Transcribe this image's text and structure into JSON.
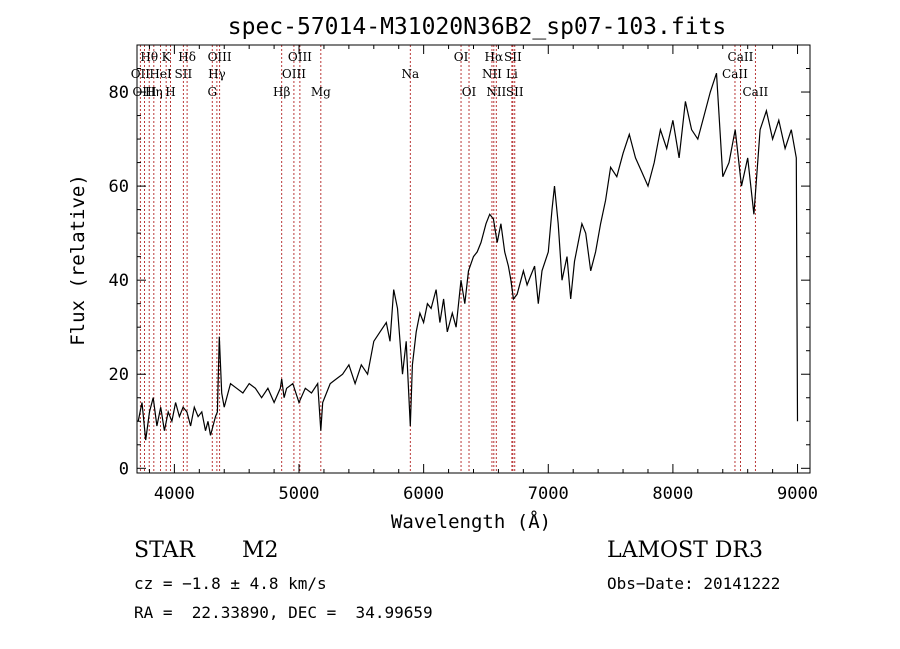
{
  "chart_data": {
    "type": "line",
    "title": "spec-57014-M31020N36B2_sp07-103.fits",
    "xlabel": "Wavelength (Å)",
    "ylabel": "Flux (relative)",
    "xlim": [
      3700,
      9100
    ],
    "ylim": [
      -1,
      90
    ],
    "xticks": [
      4000,
      5000,
      6000,
      7000,
      8000,
      9000
    ],
    "xtick_labels": [
      "4000",
      "5000",
      "6000",
      "7000",
      "8000",
      "9000"
    ],
    "yticks": [
      0,
      20,
      40,
      60,
      80
    ],
    "ytick_labels": [
      "0",
      "20",
      "40",
      "60",
      "80"
    ],
    "grid": false,
    "line_color": "#000000",
    "marker_color": "#b22222",
    "spectrum": {
      "x": [
        3710,
        3740,
        3770,
        3800,
        3830,
        3860,
        3890,
        3920,
        3950,
        3980,
        4010,
        4040,
        4070,
        4100,
        4130,
        4160,
        4190,
        4220,
        4250,
        4270,
        4290,
        4310,
        4330,
        4345,
        4360,
        4380,
        4400,
        4450,
        4500,
        4550,
        4600,
        4650,
        4700,
        4750,
        4800,
        4850,
        4861,
        4880,
        4900,
        4950,
        5000,
        5050,
        5100,
        5150,
        5175,
        5190,
        5250,
        5300,
        5350,
        5400,
        5450,
        5500,
        5550,
        5600,
        5650,
        5700,
        5730,
        5760,
        5790,
        5830,
        5860,
        5893,
        5910,
        5940,
        5970,
        6000,
        6030,
        6060,
        6100,
        6130,
        6160,
        6190,
        6230,
        6260,
        6300,
        6330,
        6360,
        6400,
        6430,
        6460,
        6500,
        6530,
        6560,
        6590,
        6620,
        6650,
        6680,
        6700,
        6720,
        6750,
        6780,
        6800,
        6830,
        6860,
        6890,
        6920,
        6950,
        7000,
        7030,
        7050,
        7080,
        7110,
        7150,
        7180,
        7210,
        7240,
        7270,
        7300,
        7340,
        7380,
        7420,
        7460,
        7500,
        7550,
        7600,
        7650,
        7700,
        7750,
        7800,
        7850,
        7900,
        7950,
        8000,
        8050,
        8100,
        8150,
        8200,
        8250,
        8300,
        8350,
        8400,
        8450,
        8500,
        8550,
        8600,
        8650,
        8700,
        8750,
        8800,
        8850,
        8900,
        8950,
        8990,
        9000
      ],
      "y": [
        10,
        14,
        6,
        12,
        15,
        9,
        13,
        8,
        12,
        10,
        14,
        11,
        13,
        12,
        9,
        13,
        11,
        12,
        8,
        10,
        7,
        9,
        11,
        12,
        28,
        16,
        13,
        18,
        17,
        16,
        18,
        17,
        15,
        17,
        14,
        17,
        19,
        15,
        17,
        18,
        14,
        17,
        16,
        18,
        8,
        14,
        18,
        19,
        20,
        22,
        18,
        22,
        20,
        27,
        29,
        31,
        27,
        38,
        34,
        20,
        27,
        9,
        22,
        29,
        33,
        31,
        35,
        34,
        38,
        31,
        36,
        29,
        33,
        30,
        40,
        35,
        42,
        45,
        46,
        48,
        52,
        54,
        53,
        48,
        52,
        46,
        43,
        40,
        36,
        37,
        40,
        42,
        39,
        41,
        43,
        35,
        42,
        46,
        55,
        60,
        52,
        40,
        45,
        36,
        44,
        48,
        52,
        50,
        42,
        46,
        52,
        57,
        64,
        62,
        67,
        71,
        66,
        63,
        60,
        65,
        72,
        68,
        74,
        66,
        78,
        72,
        70,
        75,
        80,
        84,
        62,
        65,
        72,
        60,
        66,
        54,
        72,
        76,
        70,
        74,
        68,
        72,
        66,
        10
      ],
      "note_axis": ""
    },
    "lines": [
      {
        "label": "Hθ",
        "x": 3798,
        "row": 0
      },
      {
        "label": "OII",
        "x": 3727,
        "row": 1
      },
      {
        "label": "OIII",
        "x": 3760,
        "row": 2
      },
      {
        "label": "K",
        "x": 3934,
        "row": 0
      },
      {
        "label": "HeI",
        "x": 3889,
        "row": 1
      },
      {
        "label": "Hη",
        "x": 3835,
        "row": 2
      },
      {
        "label": "SII",
        "x": 4072,
        "row": 1
      },
      {
        "label": "H",
        "x": 3969,
        "row": 2
      },
      {
        "label": "Hδ",
        "x": 4102,
        "row": 0
      },
      {
        "label": "OIII",
        "x": 4363,
        "row": 0
      },
      {
        "label": "Hγ",
        "x": 4341,
        "row": 1
      },
      {
        "label": "G",
        "x": 4304,
        "row": 2
      },
      {
        "label": "Hβ",
        "x": 4861,
        "row": 2
      },
      {
        "label": "OIII",
        "x": 5007,
        "row": 0
      },
      {
        "label": "OIII",
        "x": 4959,
        "row": 1
      },
      {
        "label": "Mg",
        "x": 5175,
        "row": 2
      },
      {
        "label": "Na",
        "x": 5893,
        "row": 1
      },
      {
        "label": "OI",
        "x": 6300,
        "row": 0
      },
      {
        "label": "OI",
        "x": 6364,
        "row": 2
      },
      {
        "label": "Hα",
        "x": 6563,
        "row": 0
      },
      {
        "label": "SII",
        "x": 6716,
        "row": 0
      },
      {
        "label": "NII",
        "x": 6548,
        "row": 1
      },
      {
        "label": "Li",
        "x": 6708,
        "row": 1
      },
      {
        "label": "NII",
        "x": 6583,
        "row": 2
      },
      {
        "label": "SII",
        "x": 6731,
        "row": 2
      },
      {
        "label": "CaII",
        "x": 8542,
        "row": 0
      },
      {
        "label": "CaII",
        "x": 8498,
        "row": 1
      },
      {
        "label": "CaII",
        "x": 8662,
        "row": 2
      }
    ]
  },
  "info": {
    "class": "STAR",
    "subclass": "M2",
    "survey": "LAMOST DR3",
    "cz": "cz = −1.8 ± 4.8 km/s",
    "obs_date": "Obs−Date: 20141222",
    "radec": "RA =  22.33890, DEC =  34.99659"
  }
}
